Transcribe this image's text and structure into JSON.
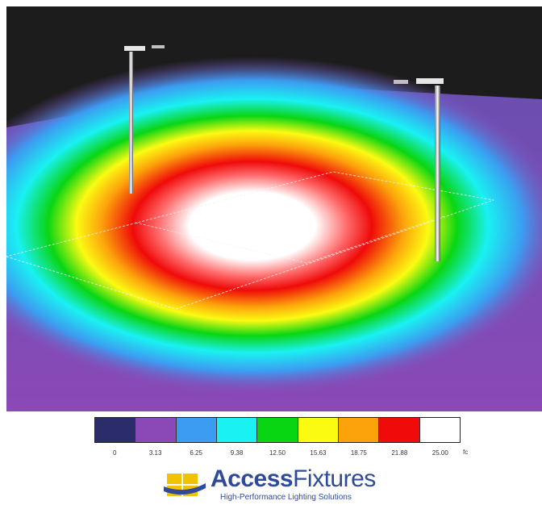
{
  "legend": {
    "labels": [
      "0",
      "3.13",
      "6.25",
      "9.38",
      "12.50",
      "15.63",
      "18.75",
      "21.88",
      "25.00"
    ],
    "unit": "fc",
    "colors": [
      "#2b2d6b",
      "#8a49b6",
      "#3c9cf1",
      "#19f1f2",
      "#09d613",
      "#fbfb12",
      "#fca20b",
      "#f00a0a",
      "#ffffff"
    ]
  },
  "logo": {
    "brand_bold": "Access",
    "brand_light": "Fixtures",
    "tagline": "High-Performance Lighting Solutions",
    "brand_color": "#2f4a9a",
    "mark_color": "#f2c200"
  }
}
